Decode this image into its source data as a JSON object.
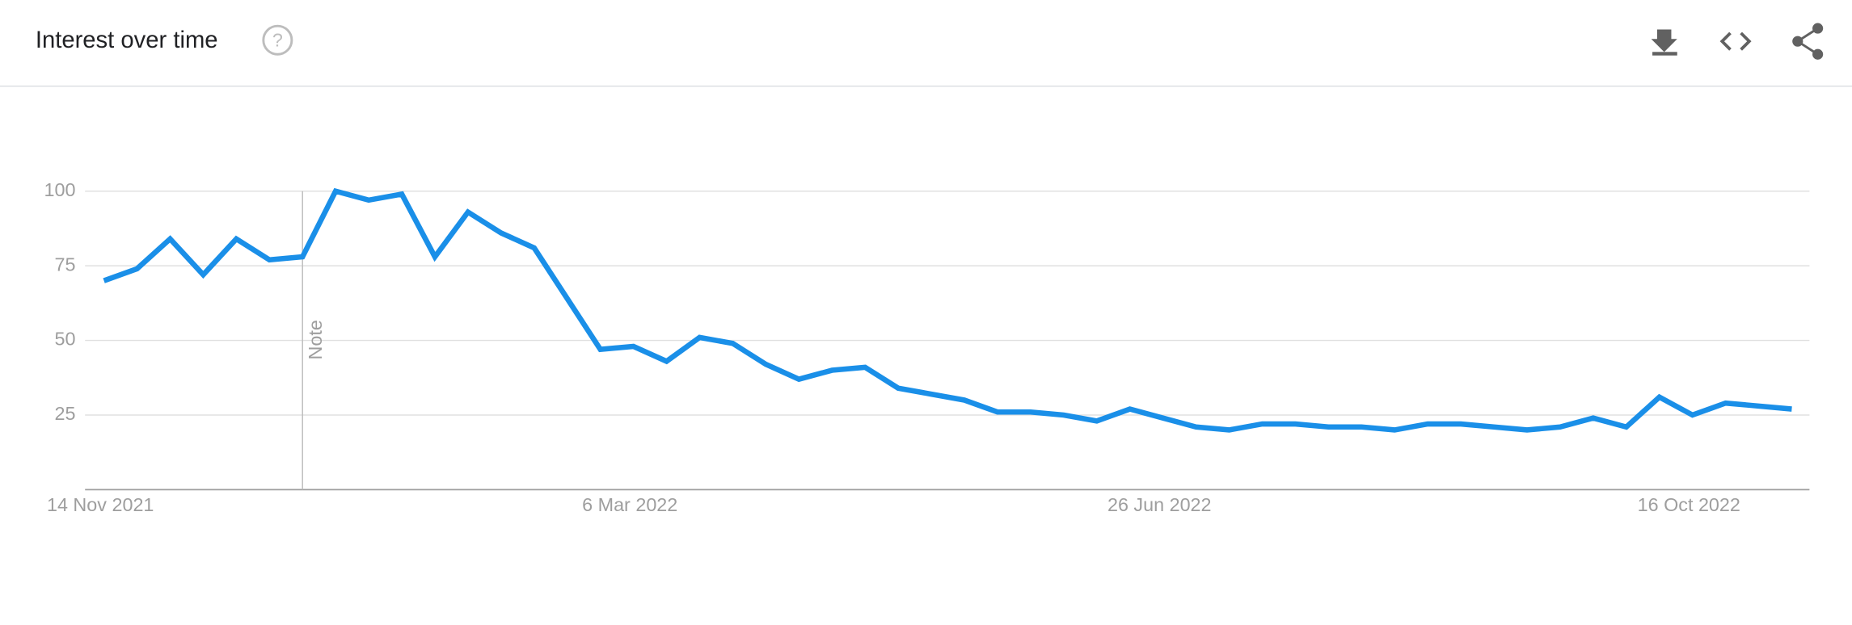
{
  "chart_data": {
    "type": "line",
    "title": "Interest over time",
    "categories": [
      "14 Nov 2021",
      null,
      null,
      null,
      null,
      null,
      null,
      null,
      null,
      null,
      null,
      null,
      null,
      null,
      null,
      null,
      "6 Mar 2022",
      null,
      null,
      null,
      null,
      null,
      null,
      null,
      null,
      null,
      null,
      null,
      null,
      null,
      null,
      null,
      "26 Jun 2022",
      null,
      null,
      null,
      null,
      null,
      null,
      null,
      null,
      null,
      null,
      null,
      null,
      null,
      null,
      null,
      "16 Oct 2022",
      null,
      null,
      null
    ],
    "series": [
      {
        "color": "#1a8fe8",
        "values": [
          70,
          74,
          84,
          72,
          84,
          77,
          78,
          100,
          97,
          99,
          78,
          93,
          86,
          81,
          64,
          47,
          48,
          43,
          51,
          49,
          42,
          37,
          40,
          41,
          34,
          32,
          30,
          26,
          26,
          25,
          23,
          27,
          24,
          21,
          20,
          22,
          22,
          21,
          21,
          20,
          22,
          22,
          21,
          20,
          21,
          24,
          21,
          31,
          25,
          29,
          28,
          27
        ]
      }
    ],
    "annotations": [
      {
        "text": "Note",
        "category_index": 6
      }
    ],
    "ylim": [
      0,
      100
    ],
    "yticks": [
      25,
      50,
      75,
      100
    ],
    "grid": true
  }
}
